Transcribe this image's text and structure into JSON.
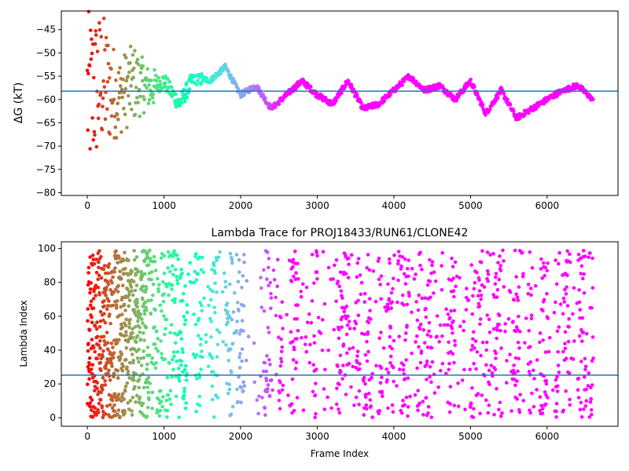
{
  "chart_data": [
    {
      "type": "scatter",
      "title": "",
      "xlabel": "",
      "ylabel": "ΔG (kT)",
      "xlim": [
        -340,
        6925
      ],
      "ylim": [
        -80.6,
        -41
      ],
      "xticks": [
        0,
        1000,
        2000,
        3000,
        4000,
        5000,
        6000
      ],
      "yticks": [
        -80,
        -75,
        -70,
        -65,
        -60,
        -55,
        -50,
        -45
      ],
      "hline": -58.2,
      "hline_color": "#1f77b4",
      "colormap": "rainbow",
      "grid": false,
      "series": [
        {
          "points_x": [
            0,
            200,
            400,
            600,
            800,
            1000,
            1200,
            1400,
            1600,
            1800,
            2000,
            2200,
            2400,
            2600,
            2800,
            3000,
            3200,
            3400,
            3600,
            3800,
            4000,
            4200,
            4400,
            4600,
            4800,
            5000,
            5200,
            5400,
            5600,
            5800,
            6000,
            6200,
            6400,
            6600
          ],
          "points_y": [
            -55,
            -60,
            -59,
            -57,
            -58,
            -56,
            -61,
            -55,
            -56,
            -53,
            -59,
            -57,
            -62,
            -59,
            -56,
            -59,
            -61,
            -56,
            -62,
            -61,
            -58,
            -55,
            -58,
            -57,
            -60,
            -56,
            -63,
            -58,
            -64,
            -62,
            -60,
            -58,
            -57,
            -60
          ]
        }
      ],
      "spread_envelope": {
        "x": [
          0,
          200,
          400,
          600,
          800,
          1000,
          1200,
          1400,
          1600,
          1800,
          2000,
          2200,
          2400,
          2600,
          2800,
          3000,
          3200,
          3400,
          3600,
          3800,
          4000,
          4200,
          4400,
          4600,
          4800,
          5000,
          5200,
          5400,
          5600,
          5800,
          6000,
          6200,
          6400,
          6600
        ],
        "low": [
          -78,
          -71,
          -68,
          -65,
          -62,
          -61,
          -63,
          -62,
          -60,
          -57,
          -62,
          -61,
          -62,
          -62,
          -61,
          -62,
          -62,
          -61,
          -63,
          -62,
          -61,
          -61,
          -60,
          -61,
          -62,
          -61,
          -64,
          -61,
          -66,
          -64,
          -62,
          -61,
          -62,
          -61
        ],
        "high": [
          -41,
          -41,
          -51,
          -48,
          -53,
          -54,
          -54,
          -55,
          -54,
          -52,
          -55,
          -56,
          -54,
          -55,
          -53,
          -56,
          -57,
          -52,
          -59,
          -60,
          -55,
          -54,
          -56,
          -56,
          -56,
          -55,
          -59,
          -56,
          -56,
          -60,
          -58,
          -58,
          -56,
          -60
        ]
      }
    },
    {
      "type": "scatter",
      "title": "Lambda Trace for PROJ18433/RUN61/CLONE42",
      "xlabel": "Frame Index",
      "ylabel": "Lambda Index",
      "xlim": [
        -340,
        6925
      ],
      "ylim": [
        -5,
        104
      ],
      "xticks": [
        0,
        1000,
        2000,
        3000,
        4000,
        5000,
        6000
      ],
      "yticks": [
        0,
        20,
        40,
        60,
        80,
        100
      ],
      "hline": 25.2,
      "hline_color": "#1f77b4",
      "colormap": "rainbow",
      "grid": false,
      "y_range": [
        0,
        99
      ],
      "frame_count": 6600,
      "dense_x_bands": [
        [
          0,
          700
        ],
        [
          700,
          1300
        ],
        [
          1400,
          1500
        ],
        [
          1600,
          1700
        ],
        [
          1800,
          1900
        ],
        [
          1950,
          2050
        ],
        [
          2300,
          2400
        ],
        [
          2500,
          2550
        ],
        [
          2650,
          2750
        ],
        [
          2950,
          3000
        ],
        [
          3250,
          3400
        ],
        [
          3500,
          3550
        ],
        [
          3600,
          3700
        ],
        [
          3800,
          3850
        ],
        [
          3900,
          4000
        ],
        [
          4100,
          4200
        ],
        [
          4300,
          4350
        ],
        [
          4400,
          4500
        ],
        [
          4700,
          4800
        ],
        [
          5000,
          5050
        ],
        [
          5100,
          5150
        ],
        [
          5200,
          5250
        ],
        [
          5300,
          5400
        ],
        [
          5550,
          5650
        ],
        [
          5750,
          5800
        ],
        [
          5900,
          6000
        ],
        [
          6100,
          6150
        ],
        [
          6200,
          6300
        ],
        [
          6400,
          6500
        ],
        [
          6550,
          6600
        ]
      ]
    }
  ]
}
